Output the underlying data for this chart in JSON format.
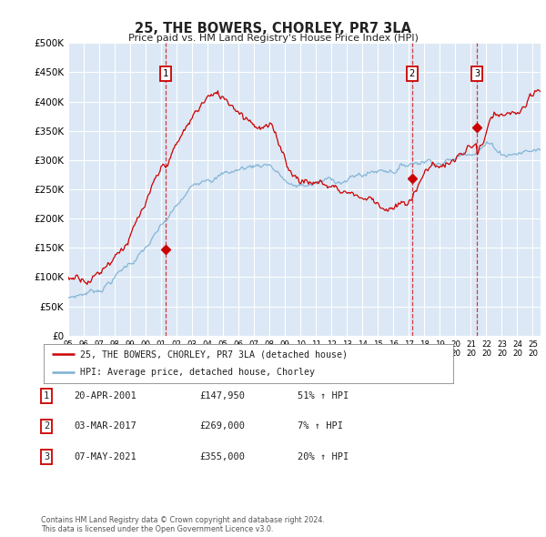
{
  "title": "25, THE BOWERS, CHORLEY, PR7 3LA",
  "subtitle": "Price paid vs. HM Land Registry's House Price Index (HPI)",
  "plot_bg_color": "#dce8f5",
  "ylim": [
    0,
    500000
  ],
  "yticks": [
    0,
    50000,
    100000,
    150000,
    200000,
    250000,
    300000,
    350000,
    400000,
    450000,
    500000
  ],
  "red_line_color": "#cc0000",
  "blue_line_color": "#7ab0d4",
  "sale_years": [
    2001.3,
    2017.2,
    2021.4
  ],
  "sale_prices": [
    147950,
    269000,
    355000
  ],
  "sale_labels": [
    "1",
    "2",
    "3"
  ],
  "transactions": [
    {
      "date": "20-APR-2001",
      "price": "£147,950",
      "change": "51% ↑ HPI",
      "num": "1"
    },
    {
      "date": "03-MAR-2017",
      "price": "£269,000",
      "change": "7% ↑ HPI",
      "num": "2"
    },
    {
      "date": "07-MAY-2021",
      "price": "£355,000",
      "change": "20% ↑ HPI",
      "num": "3"
    }
  ],
  "legend_label_red": "25, THE BOWERS, CHORLEY, PR7 3LA (detached house)",
  "legend_label_blue": "HPI: Average price, detached house, Chorley",
  "footer_line1": "Contains HM Land Registry data © Crown copyright and database right 2024.",
  "footer_line2": "This data is licensed under the Open Government Licence v3.0.",
  "xmin": 1995.0,
  "xmax": 2025.5
}
